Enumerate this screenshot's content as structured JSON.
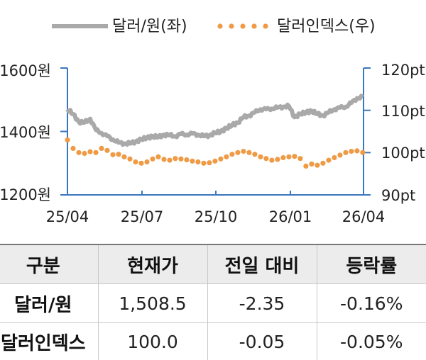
{
  "chart_data": {
    "type": "line",
    "x_ticks": [
      "25/04",
      "25/07",
      "25/10",
      "26/01",
      "26/04"
    ],
    "y_left": {
      "ticks": [
        "1600원",
        "1400원",
        "1200원"
      ],
      "range": [
        1200,
        1600
      ]
    },
    "y_right": {
      "ticks": [
        "120pt",
        "110pt",
        "100pt",
        "90pt"
      ],
      "range": [
        90,
        120
      ]
    },
    "legend_position": "top",
    "series": [
      {
        "name": "달러/원(좌)",
        "axis": "left",
        "color": "#a9a9a9",
        "style": "solid",
        "x": [
          "25/04/01",
          "25/04/08",
          "25/04/15",
          "25/04/22",
          "25/04/29",
          "25/05/06",
          "25/05/13",
          "25/05/20",
          "25/05/27",
          "25/06/03",
          "25/06/10",
          "25/06/17",
          "25/06/24",
          "25/07/01",
          "25/07/08",
          "25/07/15",
          "25/07/22",
          "25/07/29",
          "25/08/05",
          "25/08/12",
          "25/08/19",
          "25/08/26",
          "25/09/02",
          "25/09/09",
          "25/09/16",
          "25/09/23",
          "25/09/30",
          "25/10/07",
          "25/10/14",
          "25/10/21",
          "25/10/28",
          "25/11/04",
          "25/11/11",
          "25/11/18",
          "25/11/25",
          "25/12/02",
          "25/12/09",
          "25/12/16",
          "25/12/23",
          "25/12/30",
          "26/01/06",
          "26/01/13",
          "26/01/20",
          "26/01/27",
          "26/02/03",
          "26/02/10",
          "26/02/17",
          "26/02/24",
          "26/03/03",
          "26/03/10",
          "26/03/17",
          "26/03/24",
          "26/03/31"
        ],
        "values": [
          1470,
          1455,
          1430,
          1428,
          1440,
          1405,
          1395,
          1385,
          1375,
          1365,
          1362,
          1362,
          1368,
          1375,
          1380,
          1385,
          1382,
          1390,
          1388,
          1385,
          1392,
          1390,
          1393,
          1390,
          1385,
          1388,
          1395,
          1400,
          1410,
          1420,
          1428,
          1445,
          1450,
          1460,
          1470,
          1470,
          1472,
          1475,
          1478,
          1480,
          1445,
          1455,
          1460,
          1465,
          1455,
          1450,
          1460,
          1470,
          1475,
          1478,
          1490,
          1505,
          1508.5
        ]
      },
      {
        "name": "달러인덱스(우)",
        "axis": "right",
        "color": "#ef9a45",
        "style": "dotted",
        "x": [
          "25/04/01",
          "25/04/08",
          "25/04/15",
          "25/04/22",
          "25/04/29",
          "25/05/06",
          "25/05/13",
          "25/05/20",
          "25/05/27",
          "25/06/03",
          "25/06/10",
          "25/06/17",
          "25/06/24",
          "25/07/01",
          "25/07/08",
          "25/07/15",
          "25/07/22",
          "25/07/29",
          "25/08/05",
          "25/08/12",
          "25/08/19",
          "25/08/26",
          "25/09/02",
          "25/09/09",
          "25/09/16",
          "25/09/23",
          "25/09/30",
          "25/10/07",
          "25/10/14",
          "25/10/21",
          "25/10/28",
          "25/11/04",
          "25/11/11",
          "25/11/18",
          "25/11/25",
          "25/12/02",
          "25/12/09",
          "25/12/16",
          "25/12/23",
          "25/12/30",
          "26/01/06",
          "26/01/13",
          "26/01/20",
          "26/01/27",
          "26/02/03",
          "26/02/10",
          "26/02/17",
          "26/02/24",
          "26/03/03",
          "26/03/10",
          "26/03/17",
          "26/03/24",
          "26/03/31"
        ],
        "values": [
          103,
          101,
          100,
          99.8,
          100.2,
          100,
          101,
          100.5,
          99.5,
          99.6,
          99,
          98.5,
          97.8,
          97.5,
          97.8,
          98.5,
          99,
          98.4,
          98.2,
          98.6,
          98.5,
          98.3,
          98,
          97.8,
          97.5,
          97.6,
          98,
          98.5,
          99,
          99.6,
          100,
          100.3,
          100,
          99.6,
          99,
          98.6,
          98.2,
          98.4,
          98.8,
          99,
          99.1,
          98.6,
          96.8,
          97.3,
          97,
          97.5,
          98.2,
          98.8,
          99.4,
          100,
          100.3,
          100.4,
          100
        ]
      }
    ]
  },
  "table": {
    "headers": [
      "구분",
      "현재가",
      "전일 대비",
      "등락률"
    ],
    "rows": [
      {
        "name": "달러/원",
        "price": "1,508.5",
        "change": "-2.35",
        "rate": "-0.16%"
      },
      {
        "name": "달러인덱스",
        "price": "100.0",
        "change": "-0.05",
        "rate": "-0.05%"
      }
    ]
  }
}
